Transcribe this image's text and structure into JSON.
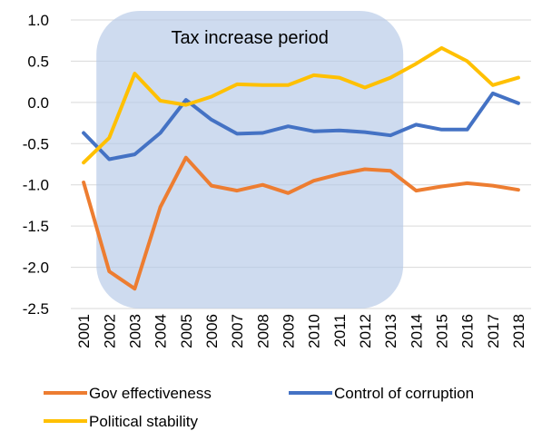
{
  "chart_data": {
    "type": "line",
    "x": [
      "2001",
      "2002",
      "2003",
      "2004",
      "2005",
      "2006",
      "2007",
      "2008",
      "2009",
      "2010",
      "2011",
      "2012",
      "2013",
      "2014",
      "2015",
      "2016",
      "2017",
      "2018"
    ],
    "ylim": [
      -2.5,
      1.0
    ],
    "yticks": [
      "1.0",
      "0.5",
      "0.0",
      "-0.5",
      "-1.0",
      "-1.5",
      "-2.0",
      "-2.5"
    ],
    "grid": true,
    "legend_position": "bottom",
    "annotation": {
      "label": "Tax increase period",
      "x_start": "2002",
      "x_end": "2013",
      "color": "#b4c7e7"
    },
    "series": [
      {
        "name": "Gov effectiveness",
        "color": "#ed7d31",
        "values": [
          -0.97,
          -2.05,
          -2.26,
          -1.27,
          -0.67,
          -1.01,
          -1.07,
          -1.0,
          -1.1,
          -0.95,
          -0.87,
          -0.81,
          -0.83,
          -1.07,
          -1.02,
          -0.98,
          -1.01,
          -1.06
        ]
      },
      {
        "name": "Control of corruption",
        "color": "#4472c4",
        "values": [
          -0.37,
          -0.69,
          -0.63,
          -0.37,
          0.03,
          -0.21,
          -0.38,
          -0.37,
          -0.29,
          -0.35,
          -0.34,
          -0.36,
          -0.4,
          -0.27,
          -0.33,
          -0.33,
          0.11,
          -0.01
        ]
      },
      {
        "name": "Political stability",
        "color": "#ffc000",
        "values": [
          -0.73,
          -0.43,
          0.35,
          0.02,
          -0.03,
          0.07,
          0.22,
          0.21,
          0.21,
          0.33,
          0.3,
          0.18,
          0.3,
          0.47,
          0.66,
          0.5,
          0.21,
          0.3
        ]
      }
    ]
  }
}
